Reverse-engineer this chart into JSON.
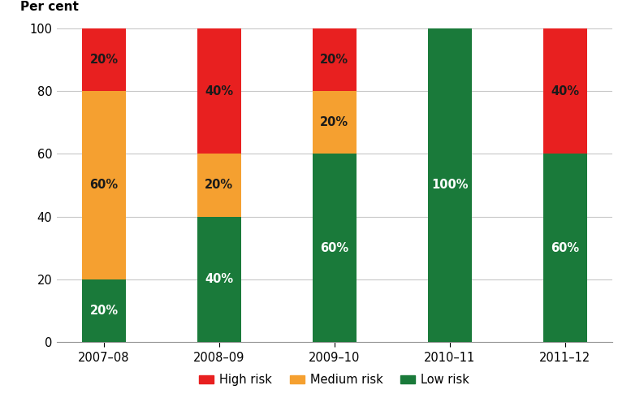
{
  "categories": [
    "2007–08",
    "2008–09",
    "2009–10",
    "2010–11",
    "2011–12"
  ],
  "low_risk": [
    20,
    40,
    60,
    100,
    60
  ],
  "medium_risk": [
    60,
    20,
    20,
    0,
    0
  ],
  "high_risk": [
    20,
    40,
    20,
    0,
    40
  ],
  "low_color": "#1a7a3a",
  "medium_color": "#f5a030",
  "high_color": "#e82020",
  "ylabel": "Per cent",
  "ylim": [
    0,
    100
  ],
  "yticks": [
    0,
    20,
    40,
    60,
    80,
    100
  ],
  "legend_labels": [
    "High risk",
    "Medium risk",
    "Low risk"
  ],
  "bar_width": 0.38,
  "label_fontsize": 10.5,
  "ylabel_fontsize": 11,
  "tick_fontsize": 10.5,
  "legend_fontsize": 10.5,
  "background_color": "#ffffff",
  "grid_color": "#c8c8c8",
  "low_label_color": "#ffffff",
  "med_label_color": "#1a1a1a",
  "high_label_color": "#1a1a1a"
}
